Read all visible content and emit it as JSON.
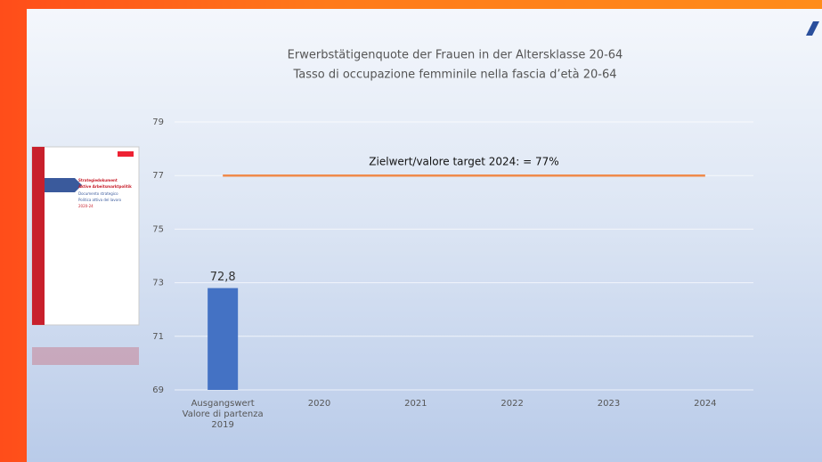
{
  "chart_data": {
    "type": "bar",
    "title": "Erwerbstätigenquote der Frauen in der Altersklasse 20-64",
    "subtitle": "Tasso di occupazione femminile nella fascia d’età 20-64",
    "categories": [
      "Ausgangswert\nValore di partenza\n2019",
      "2020",
      "2021",
      "2022",
      "2023",
      "2024"
    ],
    "values": [
      72.8,
      null,
      null,
      null,
      null,
      null
    ],
    "value_labels": [
      "72,8",
      null,
      null,
      null,
      null,
      null
    ],
    "color": "#4472c4",
    "ylim": [
      69,
      79
    ],
    "yticks": [
      69,
      71,
      73,
      75,
      77,
      79
    ],
    "grid": true,
    "target": {
      "value": 77,
      "color": "#f08a4b",
      "label": "Zielwert/valore target 2024:  = 77%"
    }
  },
  "document_thumbnail": {
    "lines": [
      "Strategiedokument",
      "Aktive Arbeitsmarktpolitik",
      "Documento strategico",
      "Politica attiva del lavoro",
      "2020-24"
    ]
  }
}
